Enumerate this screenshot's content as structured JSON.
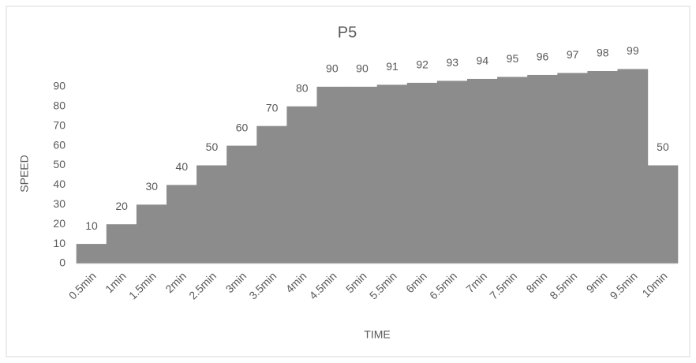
{
  "chart_data": {
    "type": "bar",
    "title": "P5",
    "x_label": "TIME",
    "y_label": "SPEED",
    "categories": [
      "0.5min",
      "1min",
      "1.5min",
      "2min",
      "2.5min",
      "3min",
      "3.5min",
      "4min",
      "4.5min",
      "5min",
      "5.5min",
      "6min",
      "6.5min",
      "7min",
      "7.5min",
      "8min",
      "8.5min",
      "9min",
      "9.5min",
      "10min"
    ],
    "values": [
      10,
      20,
      30,
      40,
      50,
      60,
      70,
      80,
      90,
      90,
      91,
      92,
      93,
      94,
      95,
      96,
      97,
      98,
      99,
      50
    ],
    "color": "#8c8c8c",
    "ylim": [
      0,
      100
    ],
    "yticks": [
      0,
      10,
      20,
      30,
      40,
      50,
      60,
      70,
      80,
      90
    ],
    "grid": false
  }
}
